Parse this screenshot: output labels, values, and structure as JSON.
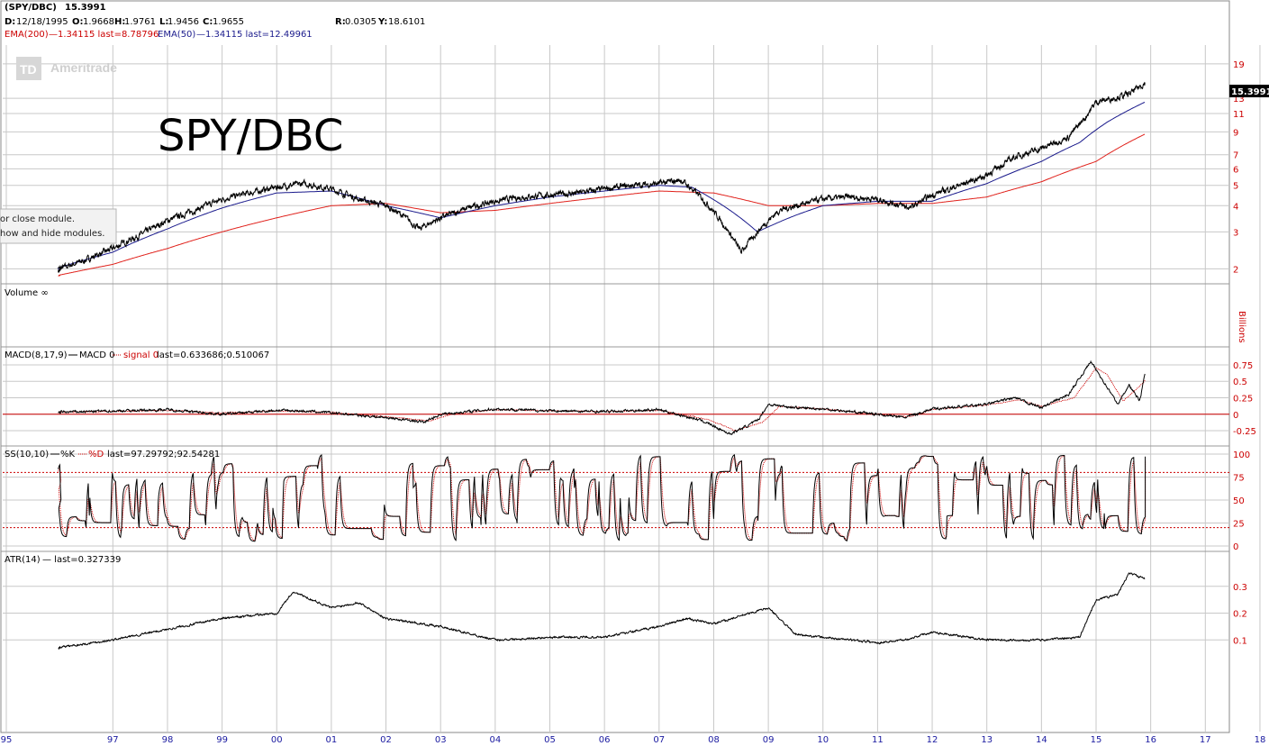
{
  "header": {
    "symbol": "(SPY/DBC)",
    "last": "15.3991",
    "date_label": "D:",
    "date": "12/18/1995",
    "open_label": "O:",
    "open": "1.9668",
    "high_label": "H:",
    "high": "1.9761",
    "low_label": "L:",
    "low": "1.9456",
    "close_label": "C:",
    "close": "1.9655",
    "r_label": "R:",
    "r": "0.0305",
    "y_label": "Y:",
    "y": "18.6101",
    "ema200": "EMA(200)",
    "ema200_vals": "—1.34115 last=8.78796",
    "ema50": "EMA(50)",
    "ema50_vals": "—1.34115 last=12.49961"
  },
  "watermark": "Ameritrade",
  "big_title": "SPY/DBC",
  "tooltip": {
    "line1": "or close module.",
    "line2": "how and hide modules."
  },
  "volume_label": "Volume ∞",
  "billions_label": "Billions",
  "macd": {
    "label": "MACD(8,17,9)",
    "line_name": "MACD 0",
    "signal_name": "signal 0",
    "values": "last=0.633686;0.510067"
  },
  "ss": {
    "label": "SS(10,10)",
    "k_name": "%K",
    "d_name": "%D",
    "values": "last=97.29792;92.54281"
  },
  "atr": {
    "label": "ATR(14)",
    "values": "— last=0.327339"
  },
  "price_badge": "15.3991",
  "colors": {
    "price": "#000000",
    "ema200": "#e0201a",
    "ema50": "#1a1a8c",
    "grid": "#c8c8c8",
    "axis_text": "#cc0000",
    "x_text": "#1a1aa0"
  },
  "chart_data": [
    {
      "type": "line",
      "panel": "price",
      "scale": "log",
      "y_ticks": [
        2,
        3,
        4,
        5,
        6,
        7,
        9,
        11,
        13,
        19
      ],
      "ylim": [
        1.8,
        22
      ],
      "series": [
        {
          "name": "SPY/DBC",
          "x": [
            1995.95,
            1996.5,
            1997,
            1997.5,
            1998,
            1998.5,
            1999,
            1999.5,
            2000,
            2000.5,
            2001,
            2001.5,
            2002,
            2002.3,
            2002.6,
            2003,
            2003.5,
            2004,
            2004.5,
            2005,
            2005.5,
            2006,
            2006.5,
            2007,
            2007.4,
            2007.8,
            2008.2,
            2008.5,
            2008.8,
            2009.2,
            2009.5,
            2010,
            2010.5,
            2011,
            2011.3,
            2011.6,
            2012,
            2012.5,
            2013,
            2013.5,
            2014,
            2014.5,
            2014.8,
            2015,
            2015.3,
            2015.6,
            2015.9
          ],
          "values": [
            1.97,
            2.2,
            2.5,
            2.9,
            3.4,
            3.8,
            4.3,
            4.6,
            4.9,
            5.1,
            4.8,
            4.3,
            4.0,
            3.6,
            3.1,
            3.5,
            3.9,
            4.2,
            4.4,
            4.5,
            4.6,
            4.8,
            5.0,
            5.1,
            5.3,
            4.3,
            3.2,
            2.4,
            3.0,
            3.8,
            4.0,
            4.3,
            4.4,
            4.3,
            4.1,
            3.9,
            4.5,
            5.0,
            5.6,
            6.8,
            7.5,
            8.5,
            10.5,
            12.5,
            13.0,
            13.6,
            15.4
          ]
        },
        {
          "name": "EMA(50)",
          "x": [
            1995.95,
            1997,
            1998,
            1999,
            2000,
            2001,
            2002,
            2003,
            2004,
            2005,
            2006,
            2007,
            2007.6,
            2008.3,
            2008.8,
            2009.5,
            2010,
            2011,
            2012,
            2013,
            2014,
            2014.7,
            2015.2,
            2015.9
          ],
          "values": [
            2.0,
            2.4,
            3.1,
            3.9,
            4.6,
            4.7,
            4.0,
            3.5,
            4.0,
            4.4,
            4.7,
            5.0,
            4.9,
            3.8,
            3.0,
            3.6,
            4.0,
            4.2,
            4.2,
            5.1,
            6.5,
            8.0,
            10.0,
            12.49961
          ]
        },
        {
          "name": "EMA(200)",
          "x": [
            1995.95,
            1997,
            1998,
            1999,
            2000,
            2001,
            2002,
            2003,
            2004,
            2005,
            2006,
            2007,
            2008,
            2009,
            2010,
            2011,
            2012,
            2013,
            2014,
            2015,
            2015.9
          ],
          "values": [
            1.85,
            2.1,
            2.5,
            3.0,
            3.5,
            4.0,
            4.1,
            3.7,
            3.8,
            4.1,
            4.4,
            4.7,
            4.6,
            4.0,
            4.0,
            4.1,
            4.1,
            4.4,
            5.2,
            6.5,
            8.78796
          ]
        }
      ]
    },
    {
      "type": "line",
      "panel": "macd",
      "y_ticks": [
        -0.25,
        0,
        0.25,
        0.5,
        0.75
      ],
      "ylim": [
        -0.4,
        0.9
      ],
      "series": [
        {
          "name": "MACD",
          "x": [
            1995.95,
            1997,
            1998,
            1999,
            2000,
            2000.5,
            2001,
            2002,
            2002.7,
            2003,
            2004,
            2005,
            2006,
            2007,
            2007.8,
            2008.3,
            2008.8,
            2009,
            2009.5,
            2010,
            2011,
            2011.5,
            2012,
            2013,
            2013.5,
            2014,
            2014.5,
            2014.9,
            2015.1,
            2015.4,
            2015.6,
            2015.8,
            2015.9
          ],
          "values": [
            0.03,
            0.05,
            0.07,
            0.0,
            0.06,
            0.05,
            0.02,
            -0.05,
            -0.12,
            0.0,
            0.08,
            0.05,
            0.04,
            0.07,
            -0.1,
            -0.3,
            -0.1,
            0.15,
            0.1,
            0.08,
            0.0,
            -0.05,
            0.08,
            0.15,
            0.25,
            0.1,
            0.3,
            0.8,
            0.55,
            0.15,
            0.45,
            0.2,
            0.633686
          ]
        },
        {
          "name": "signal",
          "x": [
            1995.95,
            1997,
            1998,
            1999,
            2000,
            2001,
            2002,
            2002.8,
            2003.2,
            2004,
            2005,
            2006,
            2007,
            2007.9,
            2008.4,
            2008.9,
            2009.2,
            2010,
            2011,
            2011.6,
            2012,
            2013,
            2013.6,
            2014,
            2014.6,
            2015,
            2015.2,
            2015.5,
            2015.7,
            2015.9
          ],
          "values": [
            0.03,
            0.04,
            0.06,
            0.02,
            0.05,
            0.03,
            -0.04,
            -0.1,
            0.0,
            0.07,
            0.05,
            0.04,
            0.06,
            -0.08,
            -0.25,
            -0.12,
            0.12,
            0.08,
            0.0,
            -0.04,
            0.07,
            0.14,
            0.22,
            0.12,
            0.25,
            0.7,
            0.6,
            0.2,
            0.35,
            0.510067
          ]
        }
      ]
    },
    {
      "type": "line",
      "panel": "ss",
      "y_ticks": [
        0,
        25,
        50,
        75,
        100
      ],
      "ylim": [
        0,
        100
      ],
      "reference_lines": [
        20,
        80
      ],
      "series": [
        {
          "name": "%K",
          "last": 97.29792
        },
        {
          "name": "%D",
          "last": 92.54281
        }
      ]
    },
    {
      "type": "line",
      "panel": "atr",
      "y_ticks": [
        0.1,
        0.2,
        0.3
      ],
      "ylim": [
        0,
        0.37
      ],
      "series": [
        {
          "name": "ATR(14)",
          "x": [
            1995.95,
            1997,
            1998,
            1999,
            2000,
            2000.3,
            2001,
            2001.5,
            2002,
            2003,
            2004,
            2005,
            2006,
            2007,
            2007.5,
            2008,
            2008.5,
            2009,
            2009.5,
            2010,
            2011,
            2011.5,
            2012,
            2013,
            2014,
            2014.7,
            2015,
            2015.4,
            2015.6,
            2015.9
          ],
          "values": [
            0.07,
            0.1,
            0.14,
            0.18,
            0.2,
            0.28,
            0.22,
            0.24,
            0.18,
            0.15,
            0.1,
            0.11,
            0.11,
            0.15,
            0.18,
            0.16,
            0.19,
            0.22,
            0.12,
            0.11,
            0.09,
            0.1,
            0.13,
            0.1,
            0.1,
            0.11,
            0.25,
            0.27,
            0.35,
            0.327339
          ]
        }
      ]
    }
  ],
  "x_axis": {
    "labels": [
      "95",
      "97",
      "98",
      "99",
      "00",
      "01",
      "02",
      "03",
      "04",
      "05",
      "06",
      "07",
      "08",
      "09",
      "10",
      "11",
      "12",
      "13",
      "14",
      "15",
      "16",
      "17",
      "18"
    ],
    "years": [
      1995.0,
      1997.0,
      1998.0,
      1999.0,
      2000.0,
      2001.0,
      2002.0,
      2003.0,
      2004.0,
      2005.0,
      2006.0,
      2007.0,
      2008.0,
      2009.0,
      2010.0,
      2011.0,
      2012.0,
      2013.0,
      2014.0,
      2015.0,
      2016.0,
      2017.0,
      2018.0
    ]
  }
}
